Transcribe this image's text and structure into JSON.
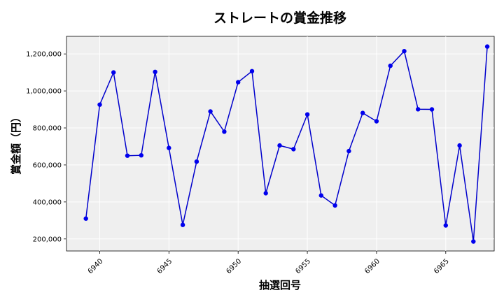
{
  "chart_data": {
    "type": "line",
    "title": "ストレートの賞金推移",
    "xlabel": "抽選回号",
    "ylabel": "賞金額（円）",
    "xlim": [
      6937.6,
      6968.5
    ],
    "ylim": [
      135000,
      1295000
    ],
    "xticks": [
      6940,
      6945,
      6950,
      6955,
      6960,
      6965
    ],
    "xtick_labels": [
      "6940",
      "6945",
      "6950",
      "6955",
      "6960",
      "6965"
    ],
    "yticks": [
      200000,
      400000,
      600000,
      800000,
      1000000,
      1200000
    ],
    "ytick_labels": [
      "200,000",
      "400,000",
      "600,000",
      "800,000",
      "1,000,000",
      "1,200,000"
    ],
    "grid": true,
    "line_color": "#0000cc",
    "marker_color": "#0000ee",
    "plot_background": "#efefef",
    "series": [
      {
        "x": [
          6939,
          6940,
          6941,
          6942,
          6943,
          6944,
          6945,
          6946,
          6947,
          6948,
          6949,
          6950,
          6951,
          6952,
          6953,
          6954,
          6955,
          6956,
          6957,
          6958,
          6959,
          6960,
          6961,
          6962,
          6963,
          6964,
          6965,
          6966,
          6967,
          6968
        ],
        "values": [
          310000,
          926000,
          1100000,
          650000,
          652000,
          1103000,
          692000,
          276000,
          618000,
          889000,
          780000,
          1047000,
          1107000,
          447000,
          705000,
          685000,
          873000,
          435000,
          381000,
          675000,
          881000,
          836000,
          1136000,
          1215000,
          901000,
          900000,
          273000,
          705000,
          186000,
          1240000
        ]
      }
    ]
  }
}
